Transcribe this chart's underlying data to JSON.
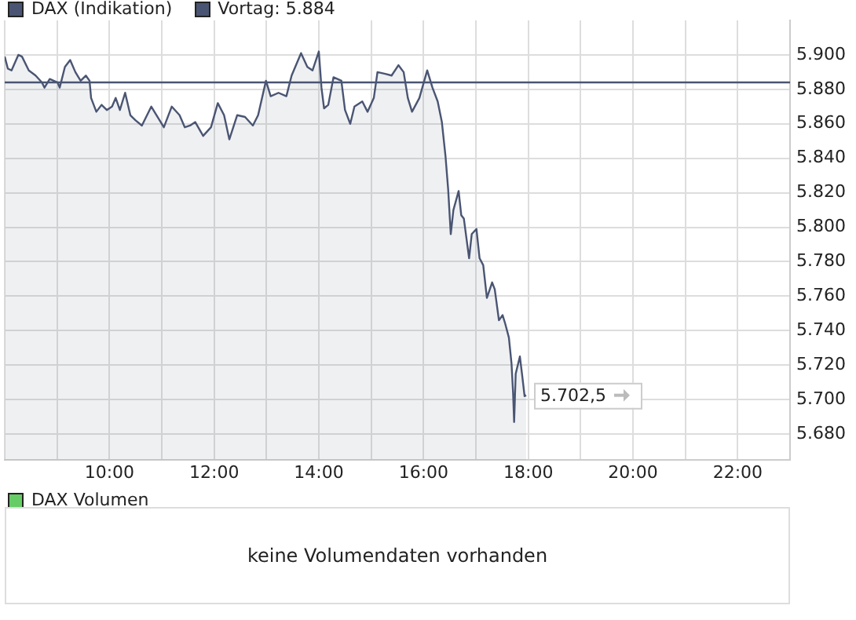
{
  "chart_data": [
    {
      "type": "area",
      "legend": "top left",
      "grid": true,
      "xlim": [
        8,
        23
      ],
      "xticks": [
        {
          "value": 8,
          "label": null
        },
        {
          "value": 9,
          "label": null
        },
        {
          "value": 10,
          "label": "10:00"
        },
        {
          "value": 11,
          "label": null
        },
        {
          "value": 12,
          "label": "12:00"
        },
        {
          "value": 13,
          "label": null
        },
        {
          "value": 14,
          "label": "14:00"
        },
        {
          "value": 15,
          "label": null
        },
        {
          "value": 16,
          "label": "16:00"
        },
        {
          "value": 17,
          "label": null
        },
        {
          "value": 18,
          "label": "18:00"
        },
        {
          "value": 19,
          "label": null
        },
        {
          "value": 20,
          "label": "20:00"
        },
        {
          "value": 21,
          "label": null
        },
        {
          "value": 22,
          "label": "22:00"
        },
        {
          "value": 23,
          "label": null
        }
      ],
      "ylim": [
        5665,
        5920
      ],
      "yticks": [
        {
          "value": 5680,
          "label": "5.680"
        },
        {
          "value": 5700,
          "label": "5.700"
        },
        {
          "value": 5720,
          "label": "5.720"
        },
        {
          "value": 5740,
          "label": "5.740"
        },
        {
          "value": 5760,
          "label": "5.760"
        },
        {
          "value": 5780,
          "label": "5.780"
        },
        {
          "value": 5800,
          "label": "5.800"
        },
        {
          "value": 5820,
          "label": "5.820"
        },
        {
          "value": 5840,
          "label": "5.840"
        },
        {
          "value": 5860,
          "label": "5.860"
        },
        {
          "value": 5880,
          "label": "5.880"
        },
        {
          "value": 5900,
          "label": "5.900"
        }
      ],
      "ref_lines": [
        {
          "axis": "y",
          "value": 5884,
          "label": "Vortag: 5.884",
          "color": "#4a5573"
        }
      ],
      "annotations": [
        {
          "text": "5.702,5",
          "x": 17.96,
          "y": 5702.5
        }
      ],
      "series": [
        {
          "name": "DAX (Indikation)",
          "color": "#4a5573",
          "x": [
            8.0,
            8.06,
            8.13,
            8.26,
            8.33,
            8.46,
            8.59,
            8.71,
            8.76,
            8.86,
            9.01,
            9.05,
            9.15,
            9.25,
            9.35,
            9.45,
            9.55,
            9.62,
            9.65,
            9.75,
            9.85,
            9.95,
            10.05,
            10.12,
            10.2,
            10.3,
            10.4,
            10.5,
            10.62,
            10.8,
            10.9,
            11.04,
            11.19,
            11.34,
            11.44,
            11.54,
            11.64,
            11.79,
            11.94,
            12.07,
            12.19,
            12.29,
            12.44,
            12.59,
            12.74,
            12.84,
            12.99,
            13.08,
            13.23,
            13.38,
            13.48,
            13.66,
            13.78,
            13.88,
            14.0,
            14.05,
            14.1,
            14.18,
            14.28,
            14.43,
            14.5,
            14.6,
            14.68,
            14.83,
            14.93,
            15.05,
            15.12,
            15.27,
            15.39,
            15.52,
            15.62,
            15.7,
            15.78,
            15.92,
            16.07,
            16.17,
            16.27,
            16.35,
            16.42,
            16.47,
            16.52,
            16.57,
            16.67,
            16.72,
            16.77,
            16.87,
            16.92,
            17.01,
            17.07,
            17.14,
            17.21,
            17.31,
            17.36,
            17.44,
            17.51,
            17.56,
            17.63,
            17.68,
            17.71,
            17.73,
            17.76,
            17.84,
            17.88,
            17.93,
            17.96
          ],
          "values": [
            5899,
            5892,
            5891,
            5900,
            5899,
            5891,
            5888,
            5884,
            5881,
            5886,
            5884,
            5881,
            5893,
            5897,
            5890,
            5885,
            5888,
            5885,
            5875,
            5867,
            5871,
            5868,
            5870,
            5875,
            5868,
            5878,
            5865,
            5862,
            5859,
            5870,
            5865,
            5858,
            5870,
            5865,
            5858,
            5859,
            5861,
            5853,
            5858,
            5872,
            5865,
            5851,
            5865,
            5864,
            5859,
            5865,
            5885,
            5876,
            5878,
            5876,
            5888,
            5901,
            5893,
            5891,
            5902,
            5881,
            5869,
            5871,
            5887,
            5885,
            5868,
            5860,
            5870,
            5873,
            5867,
            5875,
            5890,
            5889,
            5888,
            5894,
            5890,
            5875,
            5867,
            5875,
            5891,
            5881,
            5873,
            5861,
            5841,
            5822,
            5796,
            5810,
            5821,
            5807,
            5805,
            5782,
            5796,
            5799,
            5782,
            5778,
            5759,
            5768,
            5764,
            5746,
            5749,
            5744,
            5736,
            5721,
            5704,
            5687,
            5715,
            5725,
            5715,
            5702,
            5702.5
          ]
        }
      ]
    },
    {
      "type": "other",
      "title": "DAX Volumen",
      "annotations": [
        "keine Volumendaten vorhanden"
      ]
    }
  ]
}
